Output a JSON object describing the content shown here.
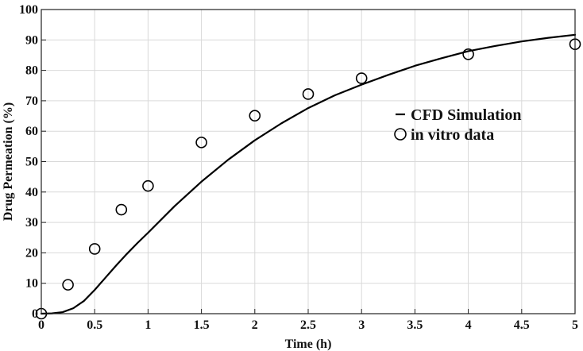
{
  "chart_data": {
    "type": "line",
    "title": "",
    "xlabel": "Time (h)",
    "ylabel": "Drug Permeation (%)",
    "xlim": [
      0,
      5
    ],
    "ylim": [
      0,
      100
    ],
    "x_ticks": [
      "0",
      "0.5",
      "1",
      "1.5",
      "2",
      "2.5",
      "3",
      "3.5",
      "4",
      "4.5",
      "5"
    ],
    "y_ticks": [
      "0",
      "10",
      "20",
      "30",
      "40",
      "50",
      "60",
      "70",
      "80",
      "90",
      "100"
    ],
    "grid": true,
    "legend_position": "right",
    "series": [
      {
        "name": "CFD Simulation",
        "kind": "line",
        "color": "#000000",
        "x": [
          0,
          0.1,
          0.2,
          0.3,
          0.4,
          0.5,
          0.6,
          0.7,
          0.8,
          0.9,
          1.0,
          1.25,
          1.5,
          1.75,
          2.0,
          2.25,
          2.5,
          2.75,
          3.0,
          3.25,
          3.5,
          3.75,
          4.0,
          4.25,
          4.5,
          4.75,
          5.0
        ],
        "y": [
          0,
          0.1,
          0.5,
          1.8,
          4.2,
          7.8,
          11.8,
          15.8,
          19.6,
          23.2,
          26.6,
          35.4,
          43.4,
          50.6,
          57.0,
          62.6,
          67.6,
          71.8,
          75.3,
          78.5,
          81.5,
          84.0,
          86.3,
          88.0,
          89.5,
          90.7,
          91.7
        ]
      },
      {
        "name": "in vitro data",
        "kind": "scatter",
        "marker": "circle-open",
        "color": "#000000",
        "x": [
          0,
          0.25,
          0.5,
          0.75,
          1.0,
          1.5,
          2.0,
          2.5,
          3.0,
          4.0,
          5.0
        ],
        "y": [
          0,
          9.5,
          21.3,
          34.2,
          42.0,
          56.3,
          65.1,
          72.2,
          77.4,
          85.3,
          88.6
        ]
      }
    ]
  }
}
